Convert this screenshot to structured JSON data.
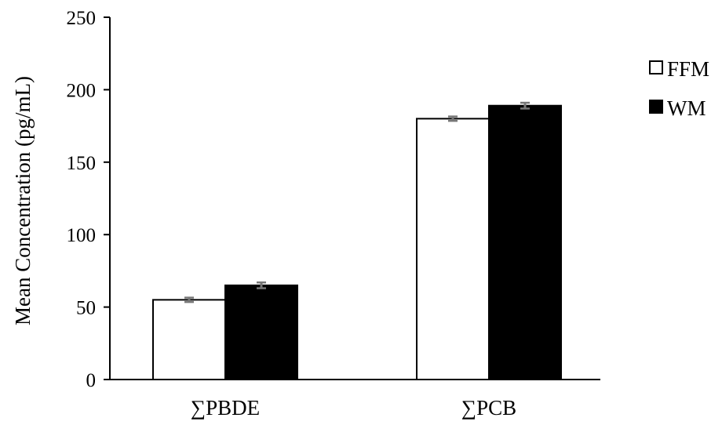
{
  "chart_data": {
    "type": "bar",
    "title": "",
    "xlabel": "",
    "ylabel": "Mean Concentration (pg/mL)",
    "categories": [
      "∑PBDE",
      "∑PCB"
    ],
    "series": [
      {
        "name": "FFM",
        "values": [
          55,
          180
        ],
        "error": [
          1.5,
          1.5
        ],
        "color": "#ffffff"
      },
      {
        "name": "WM",
        "values": [
          65,
          189
        ],
        "error": [
          2,
          2
        ],
        "color": "#000000"
      }
    ],
    "ylim": [
      0,
      250
    ],
    "yticks": [
      0,
      50,
      100,
      150,
      200,
      250
    ],
    "ytick_labels": [
      "0",
      "50",
      "100",
      "150",
      "200",
      "250"
    ],
    "grid": false,
    "legend_placement": "right",
    "error_bar_color": "#777777"
  }
}
